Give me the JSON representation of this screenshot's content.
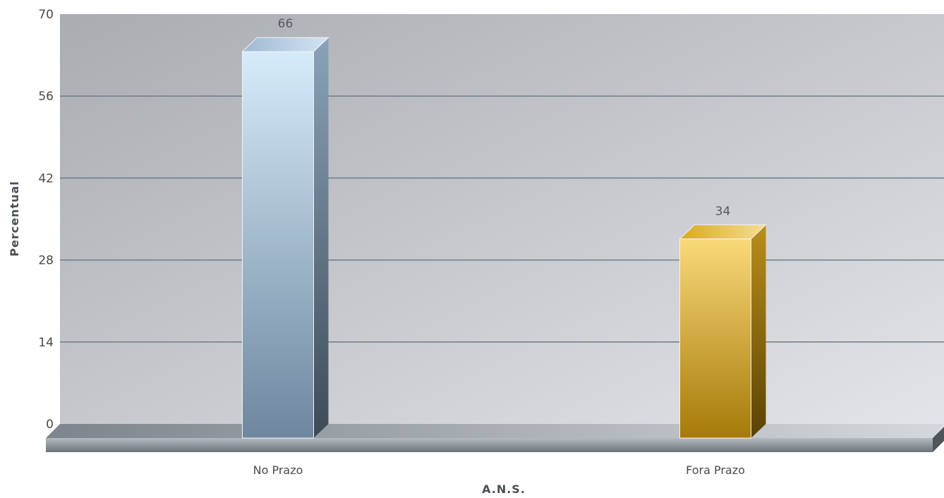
{
  "chart_data": {
    "type": "bar",
    "categories": [
      "No Prazo",
      "Fora Prazo"
    ],
    "values": [
      66,
      34
    ],
    "data_labels": [
      "66",
      "34"
    ],
    "title": "",
    "xlabel": "A.N.S.",
    "ylabel": "Percentual",
    "ylim": [
      0,
      70
    ],
    "yticks": [
      0,
      14,
      28,
      42,
      56,
      70
    ],
    "grid": true,
    "legend": "none",
    "colors": {
      "bar_1_top": "#d6ebfa",
      "bar_1_bottom": "#6e879f",
      "bar_2_top": "#fad97a",
      "bar_2_bottom": "#a57a08",
      "plot_bg_left": "#a9acb1",
      "plot_bg_right": "#e4e5e9",
      "gridline": "#6e7c88"
    }
  }
}
